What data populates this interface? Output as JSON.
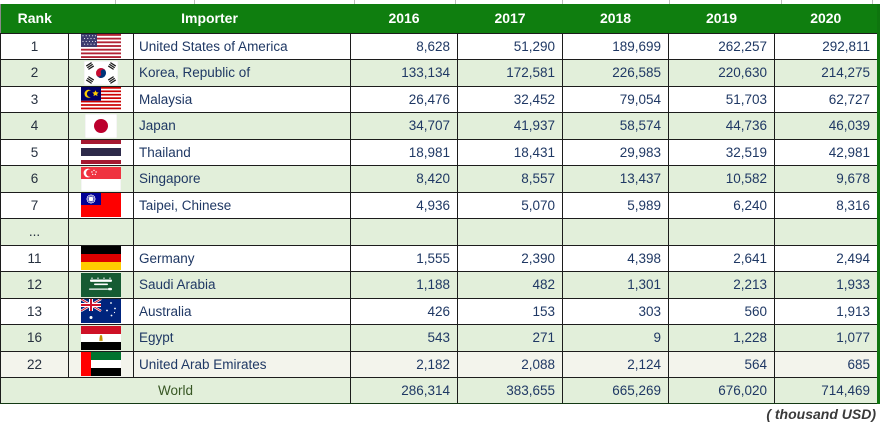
{
  "header": {
    "rank": "Rank",
    "importer": "Importer",
    "years": [
      "2016",
      "2017",
      "2018",
      "2019",
      "2020"
    ]
  },
  "rows": [
    {
      "rank": "1",
      "country": "United States of America",
      "flag": "us",
      "shade": "white",
      "values": [
        "8,628",
        "51,290",
        "189,699",
        "262,257",
        "292,811"
      ]
    },
    {
      "rank": "2",
      "country": "Korea, Republic of",
      "flag": "kr",
      "shade": "green",
      "values": [
        "133,134",
        "172,581",
        "226,585",
        "220,630",
        "214,275"
      ]
    },
    {
      "rank": "3",
      "country": "Malaysia",
      "flag": "my",
      "shade": "white",
      "values": [
        "26,476",
        "32,452",
        "79,054",
        "51,703",
        "62,727"
      ]
    },
    {
      "rank": "4",
      "country": "Japan",
      "flag": "jp",
      "shade": "green",
      "values": [
        "34,707",
        "41,937",
        "58,574",
        "44,736",
        "46,039"
      ]
    },
    {
      "rank": "5",
      "country": "Thailand",
      "flag": "th",
      "shade": "white",
      "values": [
        "18,981",
        "18,431",
        "29,983",
        "32,519",
        "42,981"
      ]
    },
    {
      "rank": "6",
      "country": "Singapore",
      "flag": "sg",
      "shade": "green",
      "values": [
        "8,420",
        "8,557",
        "13,437",
        "10,582",
        "9,678"
      ]
    },
    {
      "rank": "7",
      "country": "Taipei, Chinese",
      "flag": "tw",
      "shade": "white",
      "values": [
        "4,936",
        "5,070",
        "5,989",
        "6,240",
        "8,316"
      ]
    },
    {
      "rank": "...",
      "country": "",
      "flag": null,
      "shade": "green",
      "values": [
        "",
        "",
        "",
        "",
        ""
      ]
    },
    {
      "rank": "11",
      "country": "Germany",
      "flag": "de",
      "shade": "white",
      "values": [
        "1,555",
        "2,390",
        "4,398",
        "2,641",
        "2,494"
      ]
    },
    {
      "rank": "12",
      "country": "Saudi Arabia",
      "flag": "sa",
      "shade": "green",
      "values": [
        "1,188",
        "482",
        "1,301",
        "2,213",
        "1,933"
      ]
    },
    {
      "rank": "13",
      "country": "Australia",
      "flag": "au",
      "shade": "white",
      "values": [
        "426",
        "153",
        "303",
        "560",
        "1,913"
      ]
    },
    {
      "rank": "16",
      "country": "Egypt",
      "flag": "eg",
      "shade": "green",
      "values": [
        "543",
        "271",
        "9",
        "1,228",
        "1,077"
      ]
    },
    {
      "rank": "22",
      "country": "United Arab Emirates",
      "flag": "ae",
      "shade": "ivory",
      "values": [
        "2,182",
        "2,088",
        "2,124",
        "564",
        "685"
      ]
    }
  ],
  "world": {
    "label": "World",
    "values": [
      "286,314",
      "383,655",
      "665,269",
      "676,020",
      "714,469"
    ]
  },
  "footer_note": "( thousand USD)",
  "colors": {
    "header_bg": "#0f7e0f",
    "outer_border_green": "#0e750e",
    "row_alt_green": "#e2efda",
    "row_ivory": "#f3f4ec",
    "value_text": "#1f3864",
    "world_text": "#375623",
    "note_text": "#3a3a3a"
  }
}
